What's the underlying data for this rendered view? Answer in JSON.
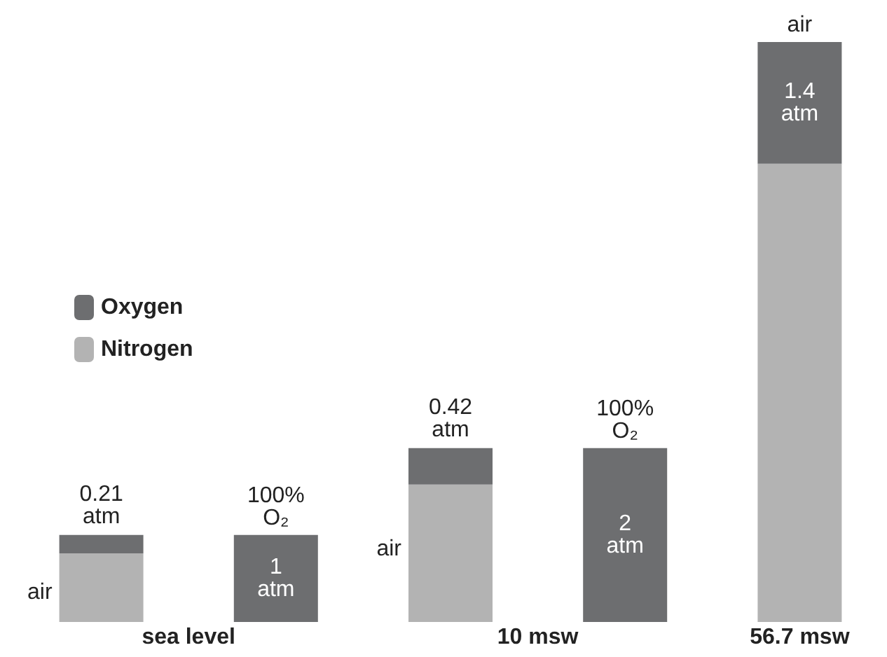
{
  "chart_data": {
    "type": "bar",
    "stacked": true,
    "legend": "left",
    "categories": [
      "air",
      "100% O₂",
      "air",
      "100% O₂",
      "air"
    ],
    "series": [
      {
        "name": "Nitrogen",
        "color": "#b3b3b3",
        "values": [
          0.79,
          null,
          1.58,
          null,
          5.27
        ]
      },
      {
        "name": "Oxygen",
        "color": "#6d6e70",
        "values": [
          0.21,
          1,
          0.42,
          2,
          1.4
        ],
        "value_labels": [
          "0.21 atm",
          "1 atm",
          "0.42 atm",
          "2 atm",
          "1.4 atm"
        ]
      }
    ],
    "annotations": [
      "sea level",
      "10 msw",
      "56.7 msw"
    ]
  }
}
